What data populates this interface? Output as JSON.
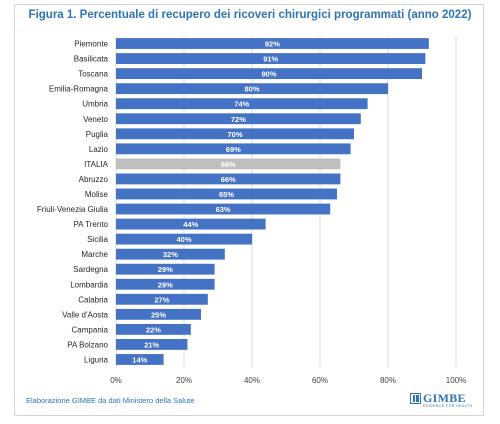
{
  "title": "Figura 1. Percentuale di recupero dei ricoveri chirurgici programmati (anno 2022)",
  "footnote": "Elaborazione GIMBE da dati Ministero della Salute",
  "logo": {
    "name": "GIMBE",
    "tagline": "EVIDENCE FOR HEALTH"
  },
  "colors": {
    "bar": "#4472c4",
    "highlight": "#bfbfbf",
    "title": "#2e74b5",
    "grid": "#d9d9d9"
  },
  "chart_data": {
    "type": "bar",
    "orientation": "horizontal",
    "categories": [
      "Piemonte",
      "Basilicata",
      "Toscana",
      "Emilia-Romagna",
      "Umbria",
      "Veneto",
      "Puglia",
      "Lazio",
      "ITALIA",
      "Abruzzo",
      "Molise",
      "Friuli-Venezia Giulia",
      "PA Trento",
      "Sicilia",
      "Marche",
      "Sardegna",
      "Lombardia",
      "Calabria",
      "Valle d'Aosta",
      "Campania",
      "PA Bolzano",
      "Liguria"
    ],
    "values": [
      92,
      91,
      90,
      80,
      74,
      72,
      70,
      69,
      66,
      66,
      65,
      63,
      44,
      40,
      32,
      29,
      29,
      27,
      25,
      22,
      21,
      14
    ],
    "data_labels": [
      "92%",
      "91%",
      "90%",
      "80%",
      "74%",
      "72%",
      "70%",
      "69%",
      "66%",
      "66%",
      "65%",
      "63%",
      "44%",
      "40%",
      "32%",
      "29%",
      "29%",
      "27%",
      "25%",
      "22%",
      "21%",
      "14%"
    ],
    "highlight_category": "ITALIA",
    "xlim": [
      0,
      100
    ],
    "xticks": [
      0,
      20,
      40,
      60,
      80,
      100
    ],
    "xtick_labels": [
      "0%",
      "20%",
      "40%",
      "60%",
      "80%",
      "100%"
    ],
    "grid": true
  }
}
